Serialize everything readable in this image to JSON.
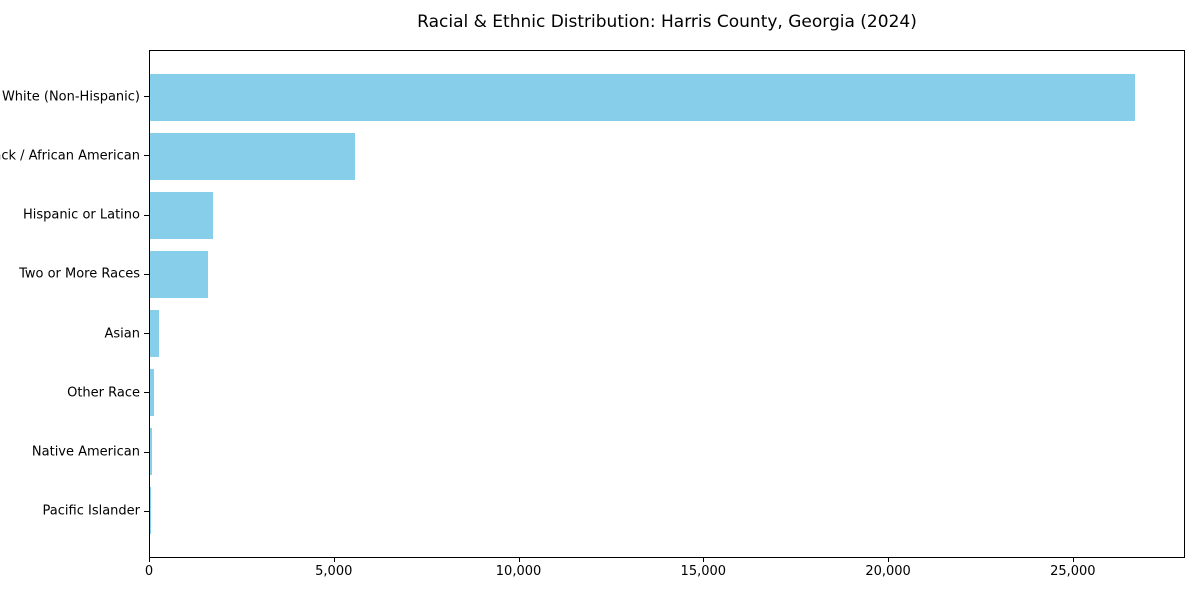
{
  "figure": {
    "title": "Racial & Ethnic Distribution: Harris County, Georgia (2024)"
  },
  "chart_data": {
    "type": "bar",
    "orientation": "horizontal",
    "title": "Racial & Ethnic Distribution: Harris County, Georgia (2024)",
    "categories": [
      "White (Non-Hispanic)",
      "Black / African American",
      "Hispanic or Latino",
      "Two or More Races",
      "Asian",
      "Other Race",
      "Native American",
      "Pacific Islander"
    ],
    "values": [
      26700,
      5560,
      1720,
      1560,
      250,
      110,
      50,
      15
    ],
    "xlabel": "",
    "ylabel": "",
    "xlim": [
      0,
      28035
    ],
    "xticks": [
      0,
      5000,
      10000,
      15000,
      20000,
      25000
    ],
    "xtick_labels": [
      "0",
      "5,000",
      "10,000",
      "15,000",
      "20,000",
      "25,000"
    ],
    "bar_color": "#87CEEB",
    "background": "#FFFFFF",
    "axis_color": "#000000",
    "grid": false,
    "legend": null,
    "bar_relative_height": 0.8,
    "category_order": "largest at top"
  }
}
